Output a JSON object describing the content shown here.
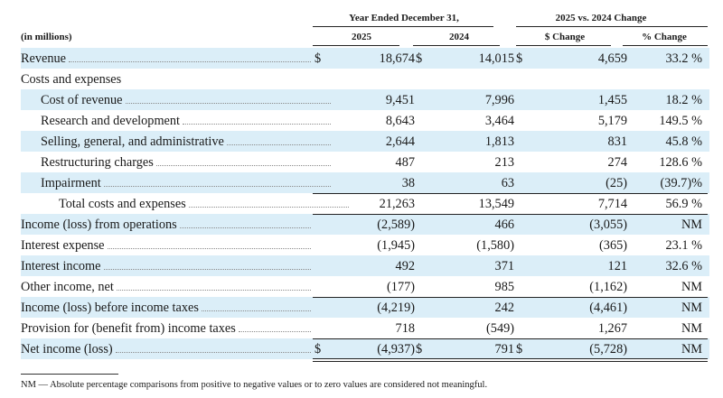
{
  "header": {
    "period_label": "Year Ended December 31,",
    "change_label": "2025 vs. 2024 Change",
    "units_label": "(in millions)",
    "col_2025": "2025",
    "col_2024": "2024",
    "col_dollar_change": "$ Change",
    "col_pct_change": "% Change"
  },
  "rows": [
    {
      "label": "Revenue",
      "v2025": "18,674",
      "v2024": "14,015",
      "change": "4,659",
      "pct": "33.2 %"
    },
    {
      "label": "Costs and expenses"
    },
    {
      "label": "Cost of revenue",
      "v2025": "9,451",
      "v2024": "7,996",
      "change": "1,455",
      "pct": "18.2 %"
    },
    {
      "label": "Research and development",
      "v2025": "8,643",
      "v2024": "3,464",
      "change": "5,179",
      "pct": "149.5 %"
    },
    {
      "label": "Selling, general, and administrative",
      "v2025": "2,644",
      "v2024": "1,813",
      "change": "831",
      "pct": "45.8 %"
    },
    {
      "label": "Restructuring charges",
      "v2025": "487",
      "v2024": "213",
      "change": "274",
      "pct": "128.6 %"
    },
    {
      "label": "Impairment",
      "v2025": "38",
      "v2024": "63",
      "change": "(25)",
      "pct": "(39.7)%"
    },
    {
      "label": "Total costs and expenses",
      "v2025": "21,263",
      "v2024": "13,549",
      "change": "7,714",
      "pct": "56.9 %"
    },
    {
      "label": "Income (loss) from operations",
      "v2025": "(2,589)",
      "v2024": "466",
      "change": "(3,055)",
      "pct": "NM"
    },
    {
      "label": "Interest expense",
      "v2025": "(1,945)",
      "v2024": "(1,580)",
      "change": "(365)",
      "pct": "23.1 %"
    },
    {
      "label": "Interest income",
      "v2025": "492",
      "v2024": "371",
      "change": "121",
      "pct": "32.6 %"
    },
    {
      "label": "Other income, net",
      "v2025": "(177)",
      "v2024": "985",
      "change": "(1,162)",
      "pct": "NM"
    },
    {
      "label": "Income (loss) before income taxes",
      "v2025": "(4,219)",
      "v2024": "242",
      "change": "(4,461)",
      "pct": "NM"
    },
    {
      "label": "Provision for (benefit from) income taxes",
      "v2025": "718",
      "v2024": "(549)",
      "change": "1,267",
      "pct": "NM"
    },
    {
      "label": "Net income (loss)",
      "v2025": "(4,937)",
      "v2024": "791",
      "change": "(5,728)",
      "pct": "NM"
    }
  ],
  "currency_symbol": "$",
  "footnote": "NM — Absolute percentage comparisons from positive to negative values or to zero values are considered not meaningful."
}
